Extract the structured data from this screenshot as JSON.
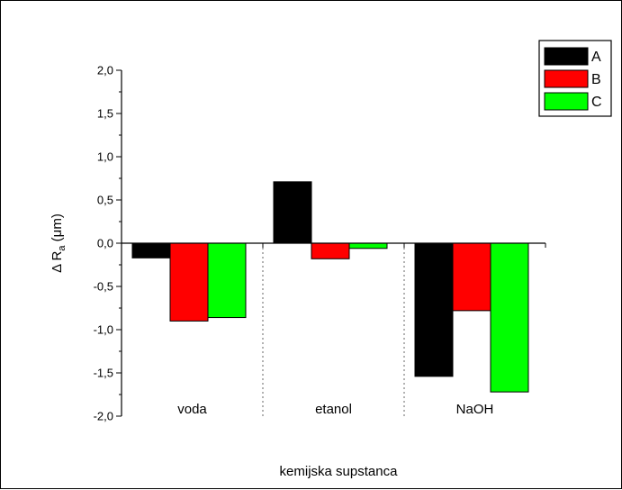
{
  "chart_data": {
    "type": "bar",
    "xlabel": "kemijska supstanca",
    "ylabel": {
      "main": "Δ R",
      "sub": "a",
      "unit": " (μm)"
    },
    "categories": [
      "voda",
      "etanol",
      "NaOH"
    ],
    "series": [
      {
        "name": "A",
        "color": "#000000",
        "values": [
          -0.17,
          0.71,
          -1.54
        ]
      },
      {
        "name": "B",
        "color": "#ff0000",
        "values": [
          -0.9,
          -0.18,
          -0.78
        ]
      },
      {
        "name": "C",
        "color": "#00ff00",
        "values": [
          -0.86,
          -0.06,
          -1.72
        ]
      }
    ],
    "ylim": [
      -2.0,
      2.0
    ],
    "yticks": [
      "-2,0",
      "-1,5",
      "-1,0",
      "-0,5",
      "0,0",
      "0,5",
      "1,0",
      "1,5",
      "2,0"
    ],
    "grid": false,
    "legend_position": "top-right"
  }
}
